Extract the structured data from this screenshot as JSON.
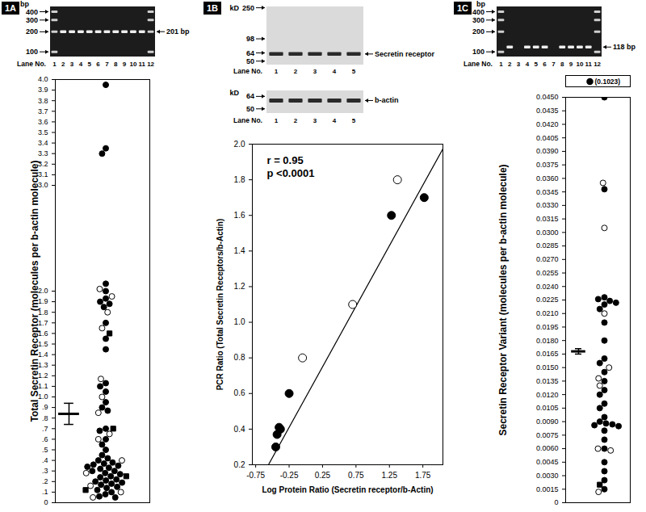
{
  "chart_data": [
    {
      "panel": "1A",
      "type": "scatter",
      "ylabel": "Total Secretin Receptor (molecules per b-actin molecule)",
      "ylim": [
        0,
        4
      ],
      "yticks": [
        0,
        {
          "value": 0.1,
          "label": ".1"
        },
        {
          "value": 0.2,
          "label": ".2"
        },
        {
          "value": 0.3,
          "label": ".3"
        },
        {
          "value": 0.4,
          "label": ".4"
        },
        {
          "value": 0.5,
          "label": ".5"
        },
        {
          "value": 0.6,
          "label": ".6"
        },
        {
          "value": 0.7,
          "label": ".7"
        },
        {
          "value": 0.8,
          "label": ".8"
        },
        {
          "value": 0.9,
          "label": ".9"
        },
        {
          "value": 1,
          "label": "1.0"
        },
        1.1,
        1.2,
        1.3,
        1.4,
        1.5,
        1.6,
        1.7,
        1.8,
        1.9,
        {
          "value": 2,
          "label": "2.0"
        },
        {
          "value": 3,
          "label": "3.0"
        },
        3.1,
        3.2,
        3.3,
        3.4,
        3.5,
        3.6,
        3.7,
        3.8,
        3.9,
        {
          "value": 4,
          "label": "4.0"
        }
      ],
      "tick_labels": "y",
      "mean": 0.84,
      "error": 0.1,
      "series": [
        {
          "marker": "circle",
          "color": "#000000",
          "values": [
            3.95,
            3.35,
            3.3,
            2.07,
            2.0,
            1.93,
            1.9,
            1.88,
            1.85,
            1.7,
            1.55,
            1.45,
            1.13,
            1.1,
            1.05,
            0.95,
            0.9,
            0.87,
            0.7,
            0.68,
            0.6,
            0.55,
            0.5,
            0.45,
            0.42,
            0.4,
            0.38,
            0.37,
            0.36,
            0.35,
            0.34,
            0.33,
            0.32,
            0.3,
            0.3,
            0.28,
            0.27,
            0.25,
            0.24,
            0.22,
            0.21,
            0.2,
            0.19,
            0.18,
            0.17,
            0.15,
            0.14,
            0.12,
            0.1,
            0.08,
            0.06,
            0.05
          ]
        },
        {
          "marker": "circle-open",
          "color": "#000000",
          "values": [
            2.02,
            1.95,
            1.8,
            1.65,
            1.17,
            1.0,
            0.85,
            0.65,
            0.6,
            0.4,
            0.28,
            0.16,
            0.1,
            0.05
          ]
        },
        {
          "marker": "square",
          "color": "#000000",
          "values": [
            1.6,
            0.7,
            0.25,
            0.12
          ]
        }
      ],
      "gel": {
        "unit": "bp",
        "ylim": [
          85,
          480
        ],
        "ticks": [
          400,
          300,
          200,
          100
        ],
        "lane_title": "Lane No.",
        "lanes": [
          1,
          2,
          3,
          4,
          5,
          6,
          7,
          8,
          9,
          10,
          11,
          12
        ],
        "ladder_lanes": [
          1,
          12
        ],
        "band_lanes": [
          2,
          3,
          4,
          5,
          6,
          7,
          8,
          9,
          10,
          11
        ],
        "band_bp": 201,
        "band_label": "201 bp"
      }
    },
    {
      "panel": "1B",
      "type": "scatter",
      "xlabel": "Log Protein Ratio (Secretin receptor/b-Actin)",
      "ylabel": "PCR Ratio (Total Secretin Receptors/b-Actin)",
      "xlim": [
        -0.8,
        2.05
      ],
      "xticks": [
        -0.75,
        -0.25,
        0.25,
        0.75,
        1.25,
        1.75
      ],
      "ylim": [
        0.2,
        2.0
      ],
      "yticks": [
        0.2,
        0.4,
        0.6,
        0.8,
        {
          "value": 1,
          "label": "1.0"
        },
        1.2,
        1.4,
        1.6,
        1.8,
        {
          "value": 2,
          "label": "2.0"
        }
      ],
      "annotations": [
        "r = 0.95",
        "p <0.0001"
      ],
      "fit": {
        "slope": 0.68,
        "intercept": 0.58
      },
      "series": [
        {
          "marker": "circle",
          "color": "#000000",
          "x": [
            -0.45,
            -0.43,
            -0.4,
            -0.38,
            -0.25,
            1.28,
            1.77
          ],
          "values": [
            0.3,
            0.37,
            0.41,
            0.4,
            0.6,
            1.6,
            1.7
          ]
        },
        {
          "marker": "circle-open",
          "color": "#000000",
          "x": [
            -0.05,
            0.7,
            1.37
          ],
          "values": [
            0.8,
            1.1,
            1.8
          ]
        }
      ],
      "blots": [
        {
          "unit": "kD",
          "ylim": [
            45,
            260
          ],
          "ticks": [
            250,
            98,
            64,
            50
          ],
          "lane_title": "Lane No.",
          "lanes": [
            1,
            2,
            3,
            4,
            5
          ],
          "band_lanes": [
            1,
            2,
            3,
            4,
            5
          ],
          "band_kd": 62,
          "band_label": "Secretin receptor"
        },
        {
          "unit": "kD",
          "ylim": [
            46,
            72
          ],
          "ticks": [
            64,
            50
          ],
          "lane_title": "Lane No.",
          "lanes": [
            1,
            2,
            3,
            4,
            5
          ],
          "band_lanes": [
            1,
            2,
            3,
            4,
            5
          ],
          "band_kd": 59,
          "band_label": "b-actin"
        }
      ]
    },
    {
      "panel": "1C",
      "type": "scatter",
      "ylabel": "Secretin Receptor Variant (molecules per b-actin molecule)",
      "ylim": [
        0,
        0.045
      ],
      "yticks": [
        0,
        0.0015,
        {
          "value": 0.003,
          "label": "0.0030"
        },
        0.0045,
        {
          "value": 0.006,
          "label": "0.0060"
        },
        0.0075,
        {
          "value": 0.009,
          "label": "0.0090"
        },
        0.0105,
        {
          "value": 0.012,
          "label": "0.0120"
        },
        0.0135,
        {
          "value": 0.015,
          "label": "0.0150"
        },
        0.0165,
        {
          "value": 0.018,
          "label": "0.0180"
        },
        0.0195,
        {
          "value": 0.021,
          "label": "0.0210"
        },
        0.0225,
        {
          "value": 0.024,
          "label": "0.0240"
        },
        0.0255,
        {
          "value": 0.027,
          "label": "0.0270"
        },
        0.0285,
        {
          "value": 0.03,
          "label": "0.0300"
        },
        0.0315,
        {
          "value": 0.033,
          "label": "0.0330"
        },
        0.0345,
        {
          "value": 0.036,
          "label": "0.0360"
        },
        0.0375,
        {
          "value": 0.039,
          "label": "0.0390"
        },
        0.0405,
        {
          "value": 0.042,
          "label": "0.0420"
        },
        0.0435,
        {
          "value": 0.045,
          "label": "0.0450"
        }
      ],
      "tick_labels": "y",
      "mean": 0.0168,
      "error": 0.0003,
      "series": [
        {
          "marker": "circle",
          "color": "#000000",
          "values": [
            0.045,
            0.0348,
            0.0228,
            0.0226,
            0.0224,
            0.0222,
            0.022,
            0.0215,
            0.02,
            0.018,
            0.016,
            0.0155,
            0.0145,
            0.0135,
            0.0125,
            0.012,
            0.011,
            0.0105,
            0.0095,
            0.009,
            0.0088,
            0.0087,
            0.0086,
            0.0085,
            0.008,
            0.007,
            0.006,
            0.0045,
            0.0035,
            0.0025,
            0.0015
          ]
        },
        {
          "marker": "circle-open",
          "color": "#000000",
          "values": [
            0.0355,
            0.0305,
            0.021,
            0.015,
            0.0138,
            0.013,
            0.006,
            0.0058,
            0.0012
          ]
        },
        {
          "marker": "square",
          "color": "#000000",
          "values": [
            0.002
          ]
        }
      ],
      "outlier": {
        "value": 0.1023,
        "label": "(0.1023)",
        "ylim": [
          0.1,
          0.105
        ],
        "marker": "circle",
        "color": "#000000"
      },
      "gel": {
        "unit": "bp",
        "ylim": [
          85,
          480
        ],
        "ticks": [
          400,
          300,
          200,
          100
        ],
        "lane_title": "Lane No.",
        "lanes": [
          1,
          2,
          3,
          4,
          5,
          6,
          7,
          8,
          9,
          10,
          11,
          12
        ],
        "ladder_lanes": [
          1,
          12
        ],
        "band_lanes": [
          2,
          4,
          5,
          6,
          8,
          9,
          10,
          11
        ],
        "band_bp": 118,
        "band_label": "118 bp"
      }
    }
  ]
}
